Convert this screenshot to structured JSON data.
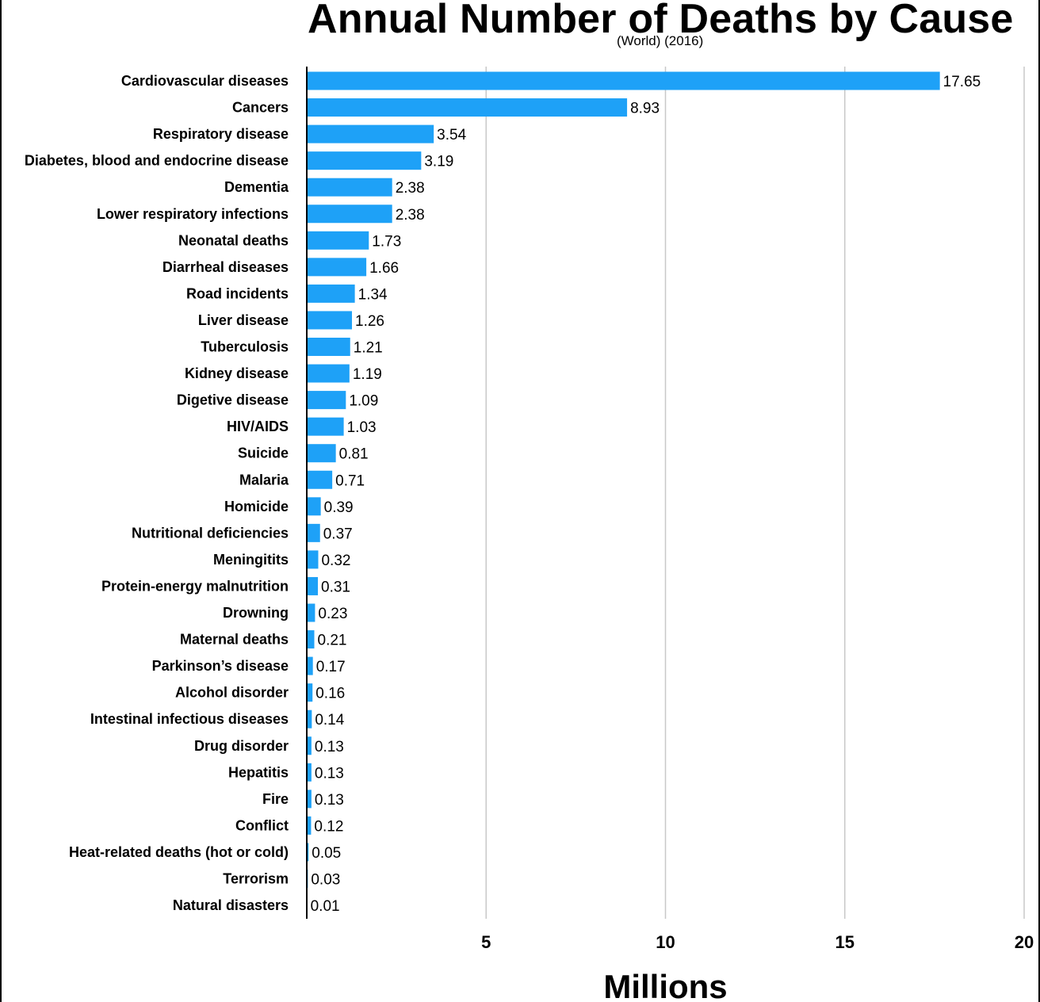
{
  "title": "Annual Number of Deaths by Cause",
  "subtitle": "(World) (2016)",
  "chart_data": {
    "type": "bar",
    "orientation": "horizontal",
    "title": "Annual Number of Deaths by Cause",
    "subtitle": "(World) (2016)",
    "xlabel": "Millions",
    "ylabel": "",
    "xlim": [
      0,
      20
    ],
    "xticks": [
      5,
      10,
      15,
      20
    ],
    "grid": true,
    "bar_color": "#1ea1f7",
    "categories": [
      "Cardiovascular diseases",
      "Cancers",
      "Respiratory disease",
      "Diabetes, blood and endocrine disease",
      "Dementia",
      "Lower respiratory infections",
      "Neonatal deaths",
      "Diarrheal diseases",
      "Road incidents",
      "Liver disease",
      "Tuberculosis",
      "Kidney disease",
      "Digetive disease",
      "HIV/AIDS",
      "Suicide",
      "Malaria",
      "Homicide",
      "Nutritional deficiencies",
      "Meningitits",
      "Protein-energy malnutrition",
      "Drowning",
      "Maternal deaths",
      "Parkinson’s disease",
      "Alcohol disorder",
      "Intestinal infectious diseases",
      "Drug disorder",
      "Hepatitis",
      "Fire",
      "Conflict",
      "Heat-related deaths (hot or cold)",
      "Terrorism",
      "Natural disasters"
    ],
    "values": [
      17.65,
      8.93,
      3.54,
      3.19,
      2.38,
      2.38,
      1.73,
      1.66,
      1.34,
      1.26,
      1.21,
      1.19,
      1.09,
      1.03,
      0.81,
      0.71,
      0.39,
      0.37,
      0.32,
      0.31,
      0.23,
      0.21,
      0.17,
      0.16,
      0.14,
      0.13,
      0.13,
      0.13,
      0.12,
      0.05,
      0.03,
      0.01
    ],
    "value_labels": [
      "17.65",
      "8.93",
      "3.54",
      "3.19",
      "2.38",
      "2.38",
      "1.73",
      "1.66",
      "1.34",
      "1.26",
      "1.21",
      "1.19",
      "1.09",
      "1.03",
      "0.81",
      "0.71",
      "0.39",
      "0.37",
      "0.32",
      "0.31",
      "0.23",
      "0.21",
      "0.17",
      "0.16",
      "0.14",
      "0.13",
      "0.13",
      "0.13",
      "0.12",
      "0.05",
      "0.03",
      "0.01"
    ]
  }
}
